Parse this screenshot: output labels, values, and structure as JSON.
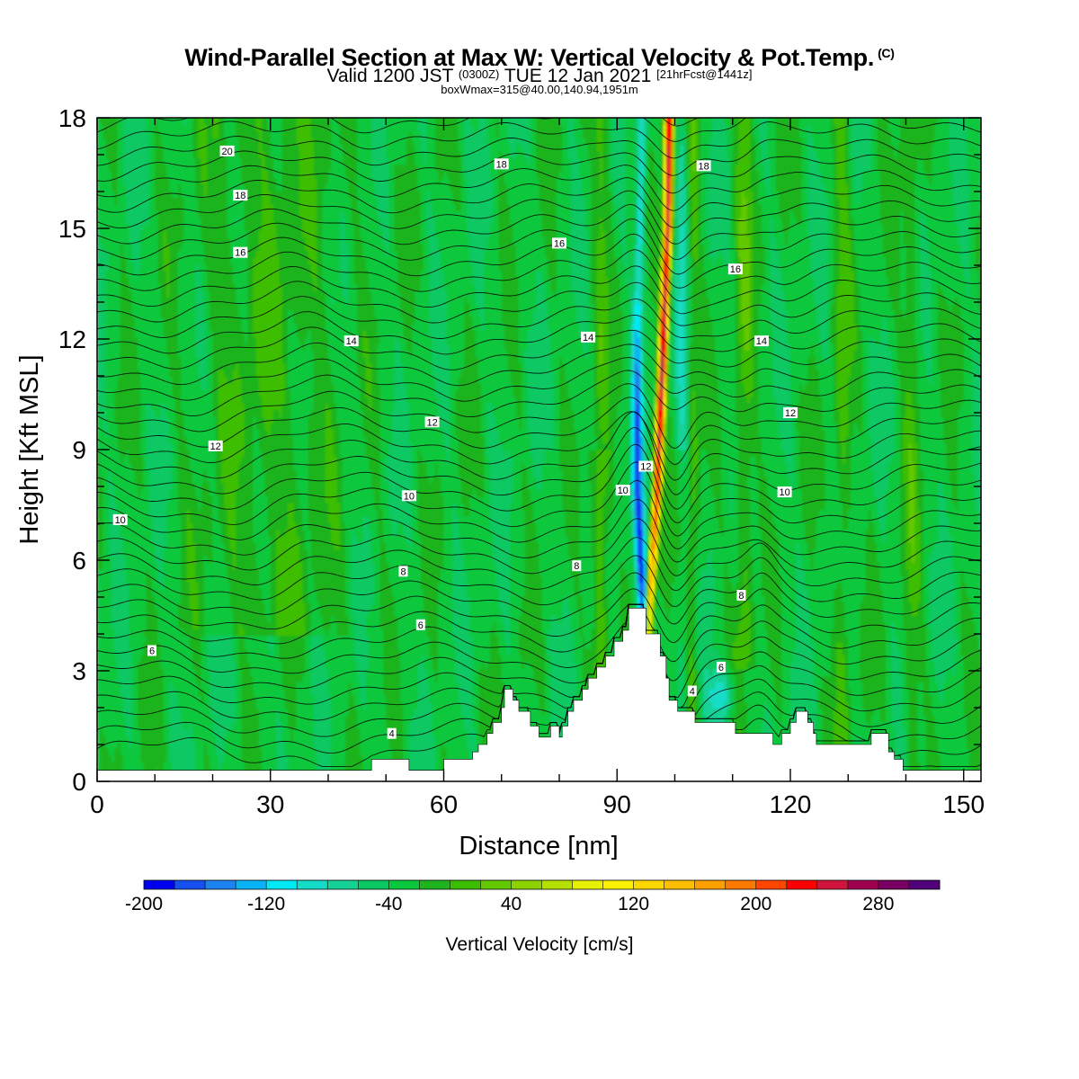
{
  "title": "Wind-Parallel Section at Max W: Vertical Velocity & Pot.Temp.",
  "title_mark": "(C)",
  "subtitle": {
    "prefix": "Valid 1200 JST",
    "utc": "(0300Z)",
    "date": "TUE 12 Jan 2021",
    "forecast": "[21hrFcst@1441z]"
  },
  "subtitle2": "boxWmax=315@40.00,140.94,1951m",
  "chart_data": {
    "type": "heatmap",
    "xlabel": "Distance [nm]",
    "ylabel": "Height [Kft MSL]",
    "xlim": [
      0,
      153
    ],
    "ylim": [
      0,
      18
    ],
    "x_ticks": [
      "0",
      "30",
      "60",
      "90",
      "120",
      "150"
    ],
    "y_ticks": [
      "0",
      "3",
      "6",
      "9",
      "12",
      "15",
      "18"
    ],
    "colorbar": {
      "label": "Vertical Velocity [cm/s]",
      "min": -200,
      "max": 320,
      "step": 20,
      "tick_labels": [
        "-200",
        "-120",
        "-40",
        "40",
        "120",
        "200",
        "280"
      ],
      "colors": [
        "#0000f0",
        "#1450f0",
        "#1e82f0",
        "#08b4f5",
        "#00eaf5",
        "#14dcc8",
        "#14d296",
        "#0ac864",
        "#0ac83c",
        "#1eb41e",
        "#3cbe00",
        "#64c800",
        "#8cd200",
        "#b4e100",
        "#e6f000",
        "#fff000",
        "#ffd700",
        "#ffbe00",
        "#ffa000",
        "#ff7800",
        "#ff4600",
        "#ff0000",
        "#d2143c",
        "#a00050",
        "#780064",
        "#500078"
      ]
    },
    "max_w": {
      "value": 315,
      "units": "cm/s",
      "lat": 40.0,
      "lon": 140.94,
      "height_m": 1951
    },
    "updraft_axis": [
      [
        95.5,
        4.5
      ],
      [
        97,
        8
      ],
      [
        98,
        12
      ],
      [
        98.8,
        15
      ],
      [
        99,
        18
      ]
    ],
    "downdraft_axis": [
      [
        94.5,
        4.5
      ],
      [
        93.5,
        8
      ],
      [
        93.5,
        12
      ],
      [
        94,
        15
      ],
      [
        94.5,
        18
      ]
    ],
    "terrain_top_kft": [
      [
        0,
        0.3
      ],
      [
        47.5,
        0.3
      ],
      [
        47.5,
        0.6
      ],
      [
        54,
        0.6
      ],
      [
        54,
        0.3
      ],
      [
        60,
        0.3
      ],
      [
        60,
        0.6
      ],
      [
        65,
        0.6
      ],
      [
        65,
        0.8
      ],
      [
        66,
        0.8
      ],
      [
        66,
        1.0
      ],
      [
        67.5,
        1.0
      ],
      [
        67.5,
        1.3
      ],
      [
        68.5,
        1.3
      ],
      [
        68.5,
        1.6
      ],
      [
        70,
        1.6
      ],
      [
        70,
        2.0
      ],
      [
        70.5,
        2.0
      ],
      [
        70.5,
        2.5
      ],
      [
        72,
        2.5
      ],
      [
        72,
        2.2
      ],
      [
        73,
        2.2
      ],
      [
        73,
        1.9
      ],
      [
        75,
        1.9
      ],
      [
        75,
        1.5
      ],
      [
        76.5,
        1.5
      ],
      [
        76.5,
        1.2
      ],
      [
        78.5,
        1.2
      ],
      [
        78.5,
        1.5
      ],
      [
        80,
        1.5
      ],
      [
        80,
        1.2
      ],
      [
        80.5,
        1.2
      ],
      [
        80.5,
        1.5
      ],
      [
        81.5,
        1.5
      ],
      [
        81.5,
        1.9
      ],
      [
        82.5,
        1.9
      ],
      [
        82.5,
        2.2
      ],
      [
        84,
        2.2
      ],
      [
        84,
        2.5
      ],
      [
        85,
        2.5
      ],
      [
        85,
        2.8
      ],
      [
        86.5,
        2.8
      ],
      [
        86.5,
        3.1
      ],
      [
        88,
        3.1
      ],
      [
        88,
        3.4
      ],
      [
        89.5,
        3.4
      ],
      [
        89.5,
        3.8
      ],
      [
        91,
        3.8
      ],
      [
        91,
        4.1
      ],
      [
        92,
        4.1
      ],
      [
        92,
        4.7
      ],
      [
        95,
        4.7
      ],
      [
        95,
        4.0
      ],
      [
        97.5,
        4.0
      ],
      [
        97.5,
        3.4
      ],
      [
        98.5,
        3.4
      ],
      [
        98.5,
        2.8
      ],
      [
        99,
        2.8
      ],
      [
        99,
        2.2
      ],
      [
        100.5,
        2.2
      ],
      [
        100.5,
        1.9
      ],
      [
        103.5,
        1.9
      ],
      [
        103.5,
        1.6
      ],
      [
        110.5,
        1.6
      ],
      [
        110.5,
        1.3
      ],
      [
        117,
        1.3
      ],
      [
        117,
        1.0
      ],
      [
        118.5,
        1.0
      ],
      [
        118.5,
        1.3
      ],
      [
        120,
        1.3
      ],
      [
        120,
        1.6
      ],
      [
        121,
        1.6
      ],
      [
        121,
        1.9
      ],
      [
        123,
        1.9
      ],
      [
        123,
        1.6
      ],
      [
        124,
        1.6
      ],
      [
        124,
        1.3
      ],
      [
        124.5,
        1.3
      ],
      [
        124.5,
        1.0
      ],
      [
        134,
        1.0
      ],
      [
        134,
        1.3
      ],
      [
        137,
        1.3
      ],
      [
        137,
        0.8
      ],
      [
        138,
        0.8
      ],
      [
        138,
        0.6
      ],
      [
        139.5,
        0.6
      ],
      [
        139.5,
        0.3
      ],
      [
        153,
        0.3
      ]
    ],
    "theta_labels": [
      {
        "text": "20",
        "x": 22.5,
        "y": 17.1
      },
      {
        "text": "18",
        "x": 24.8,
        "y": 15.9
      },
      {
        "text": "16",
        "x": 24.8,
        "y": 14.35
      },
      {
        "text": "18",
        "x": 70,
        "y": 16.75
      },
      {
        "text": "16",
        "x": 80,
        "y": 14.6
      },
      {
        "text": "14",
        "x": 44,
        "y": 11.95
      },
      {
        "text": "14",
        "x": 85,
        "y": 12.05
      },
      {
        "text": "12",
        "x": 58,
        "y": 9.75
      },
      {
        "text": "12",
        "x": 20.5,
        "y": 9.1
      },
      {
        "text": "12",
        "x": 95,
        "y": 8.55
      },
      {
        "text": "10",
        "x": 54,
        "y": 7.75
      },
      {
        "text": "10",
        "x": 91,
        "y": 7.9
      },
      {
        "text": "10",
        "x": 119,
        "y": 7.85
      },
      {
        "text": "10",
        "x": 4,
        "y": 7.1
      },
      {
        "text": "8",
        "x": 53,
        "y": 5.7
      },
      {
        "text": "8",
        "x": 83,
        "y": 5.85
      },
      {
        "text": "8",
        "x": 111.5,
        "y": 5.05
      },
      {
        "text": "6",
        "x": 56,
        "y": 4.25
      },
      {
        "text": "6",
        "x": 9.5,
        "y": 3.55
      },
      {
        "text": "6",
        "x": 108,
        "y": 3.1
      },
      {
        "text": "4",
        "x": 103,
        "y": 2.45
      },
      {
        "text": "4",
        "x": 51,
        "y": 1.3
      },
      {
        "text": "14",
        "x": 115,
        "y": 11.95
      },
      {
        "text": "16",
        "x": 110.5,
        "y": 13.9
      },
      {
        "text": "18",
        "x": 105,
        "y": 16.7
      },
      {
        "text": "12",
        "x": 120,
        "y": 10.0
      }
    ]
  }
}
